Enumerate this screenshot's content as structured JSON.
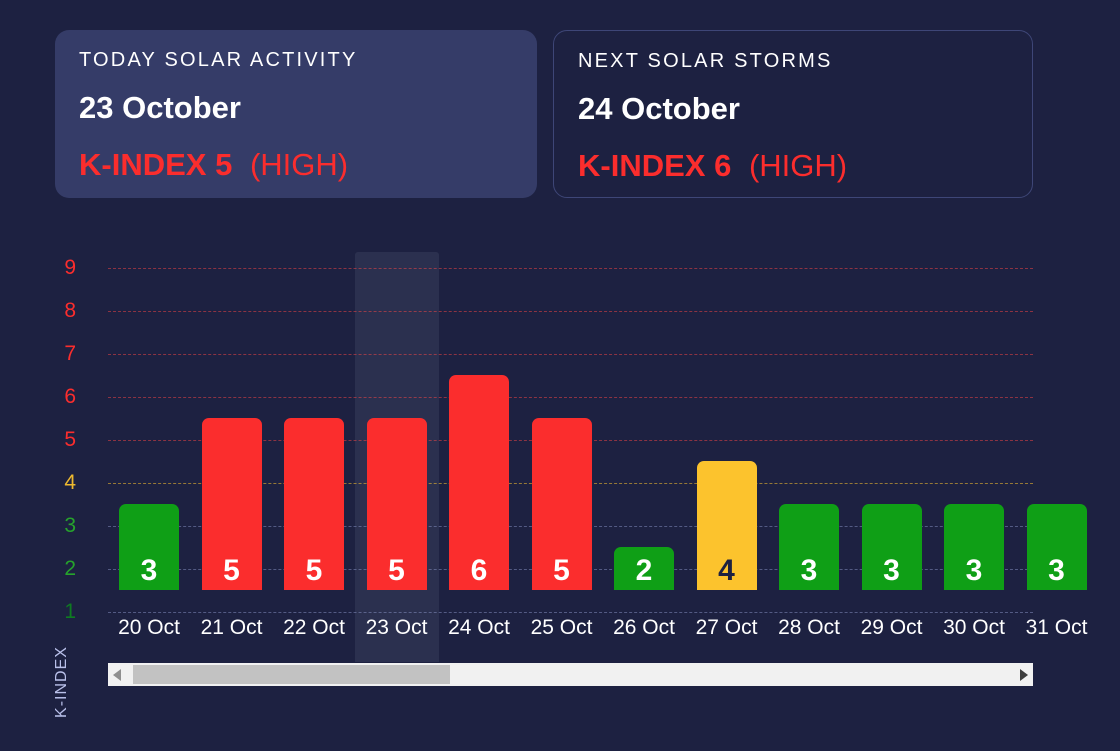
{
  "page": {
    "background": "#1d2141",
    "accent_red": "#fb2d2d"
  },
  "cards": {
    "today": {
      "title": "TODAY SOLAR ACTIVITY",
      "date": "23 October",
      "kindex": "K-INDEX 5",
      "level": "(HIGH)"
    },
    "next": {
      "title": "NEXT SOLAR STORMS",
      "date": "24 October",
      "kindex": "K-INDEX 6",
      "level": "(HIGH)"
    }
  },
  "chart_data": {
    "type": "bar",
    "title": "",
    "xlabel": "",
    "ylabel": "K-INDEX",
    "categories": [
      "20 Oct",
      "21 Oct",
      "22 Oct",
      "23 Oct",
      "24 Oct",
      "25 Oct",
      "26 Oct",
      "27 Oct",
      "28 Oct",
      "29 Oct",
      "30 Oct",
      "31 Oct"
    ],
    "values": [
      3,
      5,
      5,
      5,
      6,
      5,
      2,
      4,
      3,
      3,
      3,
      3
    ],
    "ylim": [
      0,
      9
    ],
    "yticks": [
      1,
      2,
      3,
      4,
      5,
      6,
      7,
      8,
      9
    ],
    "grid": true,
    "legend": false,
    "highlighted_category": "23 Oct",
    "bar_colors": {
      "low": "#0f9f16",
      "moderate": "#fcc32d",
      "high": "#fb2d2d"
    },
    "bar_label_colors": {
      "low": "#ffffff",
      "moderate": "#1d2141",
      "high": "#ffffff"
    },
    "tick_colors": {
      "1": "#0e7c21",
      "2": "#26a32c",
      "3": "#26a32c",
      "4": "#edb92f",
      "5": "#fb2d2d",
      "6": "#fb2d2d",
      "7": "#fb2d2d",
      "8": "#fb2d2d",
      "9": "#fb2d2d"
    },
    "grid_colors": {
      "low": "rgba(139,150,200,0.5)",
      "moderate": "rgba(252,195,45,0.55)",
      "high": "rgba(251,70,70,0.5)"
    }
  },
  "scrollbar": {
    "left_icon": "left-triangle",
    "right_icon": "right-triangle"
  }
}
